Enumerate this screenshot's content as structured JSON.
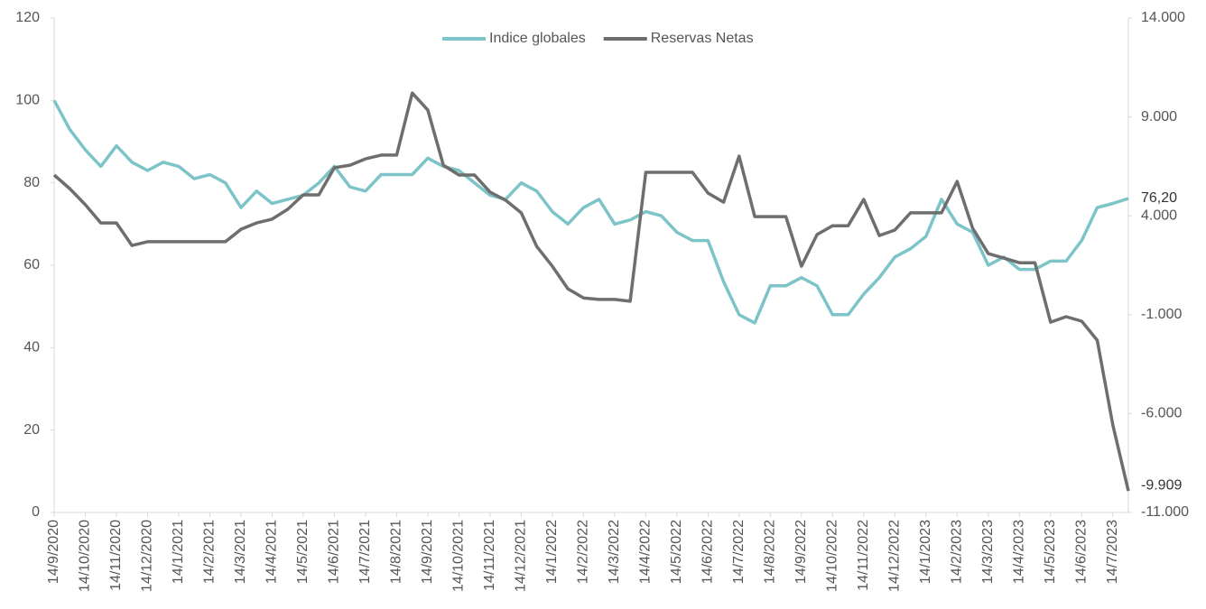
{
  "chart_data": {
    "type": "line",
    "categories": [
      "14/9/2020",
      null,
      "14/10/2020",
      null,
      "14/11/2020",
      null,
      "14/12/2020",
      null,
      "14/1/2021",
      null,
      "14/2/2021",
      null,
      "14/3/2021",
      null,
      "14/4/2021",
      null,
      "14/5/2021",
      null,
      "14/6/2021",
      null,
      "14/7/2021",
      null,
      "14/8/2021",
      null,
      "14/9/2021",
      null,
      "14/10/2021",
      null,
      "14/11/2021",
      null,
      "14/12/2021",
      null,
      "14/1/2022",
      null,
      "14/2/2022",
      null,
      "14/3/2022",
      null,
      "14/4/2022",
      null,
      "14/5/2022",
      null,
      "14/6/2022",
      null,
      "14/7/2022",
      null,
      "14/8/2022",
      null,
      "14/9/2022",
      null,
      "14/10/2022",
      null,
      "14/11/2022",
      null,
      "14/12/2022",
      null,
      "14/1/2023",
      null,
      "14/2/2023",
      null,
      "14/3/2023",
      null,
      "14/4/2023",
      null,
      "14/5/2023",
      null,
      "14/6/2023",
      null,
      "14/7/2023",
      null
    ],
    "series": [
      {
        "name": "Indice globales",
        "color": "#7cc4c8",
        "end_label": "76,20",
        "values": [
          100,
          93,
          88,
          84,
          89,
          85,
          83,
          85,
          84,
          81,
          82,
          80,
          74,
          78,
          75,
          76,
          77,
          80,
          84,
          79,
          78,
          82,
          82,
          82,
          86,
          84,
          83,
          80,
          77,
          76,
          80,
          78,
          73,
          70,
          74,
          76,
          70,
          71,
          73,
          72,
          68,
          66,
          66,
          56,
          48,
          46,
          55,
          55,
          57,
          55,
          48,
          48,
          53,
          57,
          62,
          64,
          67,
          76,
          70,
          68,
          60,
          62,
          59,
          59,
          61,
          61,
          66,
          74,
          75,
          76.2
        ]
      },
      {
        "name": "Reservas Netas",
        "color": "#6e6e6e",
        "axis": "y2",
        "end_label": "-9.909",
        "values": [
          6060,
          5380,
          4560,
          3640,
          3640,
          2500,
          2690,
          2690,
          2690,
          2690,
          2690,
          2690,
          3320,
          3640,
          3830,
          4330,
          5060,
          5060,
          6430,
          6560,
          6880,
          7070,
          7070,
          10210,
          9350,
          6560,
          6060,
          6060,
          5200,
          4790,
          4150,
          2450,
          1450,
          310,
          -150,
          -230,
          -230,
          -320,
          6200,
          6200,
          6200,
          6200,
          5150,
          4690,
          7020,
          3960,
          3960,
          3960,
          1450,
          3050,
          3500,
          3500,
          4830,
          3000,
          3280,
          4150,
          4150,
          4150,
          5740,
          3370,
          2090,
          1860,
          1630,
          1630,
          -1380,
          -1100,
          -1330,
          -2290,
          -6580,
          -9909
        ]
      }
    ],
    "ylim": [
      0,
      120
    ],
    "yticks": [
      0,
      20,
      40,
      60,
      80,
      100,
      120
    ],
    "y2lim": [
      -11000,
      14000
    ],
    "y2ticks": [
      {
        "value": -11000,
        "label": "-11.000"
      },
      {
        "value": -6000,
        "label": "-6.000"
      },
      {
        "value": -1000,
        "label": "-1.000"
      },
      {
        "value": 4000,
        "label": "4.000"
      },
      {
        "value": 9000,
        "label": "9.000"
      },
      {
        "value": 14000,
        "label": "14.000"
      }
    ],
    "legend": "top"
  }
}
